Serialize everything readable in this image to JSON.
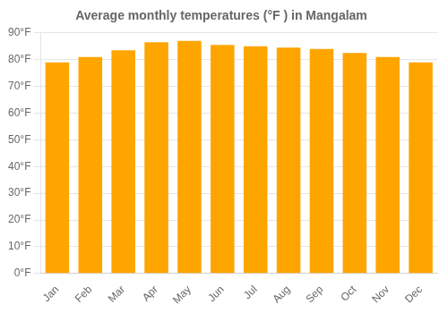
{
  "chart_data": {
    "type": "bar",
    "title": "Average monthly temperatures (°F ) in Mangalam",
    "categories": [
      "Jan",
      "Feb",
      "Mar",
      "Apr",
      "May",
      "Jun",
      "Jul",
      "Aug",
      "Sep",
      "Oct",
      "Nov",
      "Dec"
    ],
    "values": [
      79,
      81,
      83.5,
      86.5,
      87,
      85.5,
      85,
      84.5,
      84,
      82.5,
      81,
      79
    ],
    "color": "#FFA500",
    "ylim": [
      0,
      90
    ],
    "yticks": [
      {
        "value": 0,
        "label": "0°F"
      },
      {
        "value": 10,
        "label": "10°F"
      },
      {
        "value": 20,
        "label": "20°F"
      },
      {
        "value": 30,
        "label": "30°F"
      },
      {
        "value": 40,
        "label": "40°F"
      },
      {
        "value": 50,
        "label": "50°F"
      },
      {
        "value": 60,
        "label": "60°F"
      },
      {
        "value": 70,
        "label": "70°F"
      },
      {
        "value": 80,
        "label": "80°F"
      },
      {
        "value": 90,
        "label": "90°F"
      }
    ],
    "grid": true
  }
}
